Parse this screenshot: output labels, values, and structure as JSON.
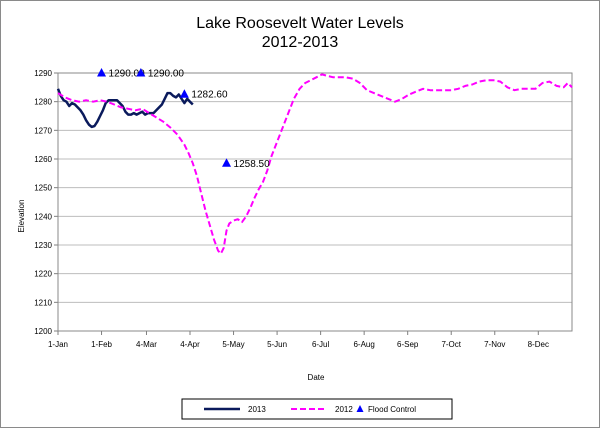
{
  "chart_data": {
    "type": "line",
    "title": "Lake Roosevelt Water Levels",
    "subtitle": "2012-2013",
    "xlabel": "Date",
    "ylabel": "Elevation",
    "ylim": [
      1200,
      1290
    ],
    "yticks": [
      1200,
      1210,
      1220,
      1230,
      1240,
      1250,
      1260,
      1270,
      1280,
      1290
    ],
    "xlim": [
      0,
      366
    ],
    "xtick_labels": [
      "1-Jan",
      "1-Feb",
      "4-Mar",
      "4-Apr",
      "5-May",
      "5-Jun",
      "6-Jul",
      "6-Aug",
      "6-Sep",
      "7-Oct",
      "7-Nov",
      "8-Dec"
    ],
    "xtick_days": [
      0,
      31,
      63,
      94,
      125,
      156,
      187,
      218,
      249,
      280,
      311,
      342
    ],
    "grid": "horizontal",
    "legend_position": "bottom",
    "series": [
      {
        "name": "2013",
        "color": "#0a1a5c",
        "style": "solid",
        "points": [
          [
            0,
            1284.5
          ],
          [
            2,
            1282
          ],
          [
            4,
            1280.5
          ],
          [
            6,
            1280
          ],
          [
            8,
            1278.5
          ],
          [
            10,
            1279.5
          ],
          [
            12,
            1279
          ],
          [
            14,
            1278
          ],
          [
            16,
            1277
          ],
          [
            18,
            1275.5
          ],
          [
            20,
            1273.5
          ],
          [
            22,
            1272
          ],
          [
            24,
            1271.2
          ],
          [
            26,
            1271.5
          ],
          [
            28,
            1273
          ],
          [
            30,
            1275
          ],
          [
            32,
            1277
          ],
          [
            34,
            1279.5
          ],
          [
            36,
            1280.5
          ],
          [
            38,
            1280.5
          ],
          [
            40,
            1280.5
          ],
          [
            42,
            1280.5
          ],
          [
            44,
            1279.5
          ],
          [
            46,
            1278.5
          ],
          [
            48,
            1276.5
          ],
          [
            50,
            1275.5
          ],
          [
            52,
            1275.5
          ],
          [
            54,
            1276
          ],
          [
            56,
            1275.5
          ],
          [
            58,
            1276
          ],
          [
            60,
            1276.5
          ],
          [
            62,
            1275.5
          ],
          [
            64,
            1276
          ],
          [
            66,
            1276
          ],
          [
            68,
            1276
          ],
          [
            70,
            1277
          ],
          [
            72,
            1278
          ],
          [
            74,
            1279
          ],
          [
            76,
            1281
          ],
          [
            78,
            1283
          ],
          [
            80,
            1283
          ],
          [
            82,
            1282
          ],
          [
            84,
            1281.5
          ],
          [
            86,
            1282.5
          ],
          [
            88,
            1281
          ],
          [
            90,
            1279.5
          ],
          [
            92,
            1281
          ],
          [
            94,
            1280
          ],
          [
            96,
            1279
          ]
        ]
      },
      {
        "name": "2012",
        "color": "#ff00ff",
        "style": "dashed",
        "points": [
          [
            0,
            1283
          ],
          [
            5,
            1281.5
          ],
          [
            10,
            1280.5
          ],
          [
            15,
            1280
          ],
          [
            20,
            1280.5
          ],
          [
            25,
            1280
          ],
          [
            30,
            1280.5
          ],
          [
            35,
            1280
          ],
          [
            40,
            1279
          ],
          [
            45,
            1278
          ],
          [
            50,
            1277.5
          ],
          [
            55,
            1277
          ],
          [
            60,
            1277.5
          ],
          [
            65,
            1276
          ],
          [
            70,
            1274.5
          ],
          [
            75,
            1273
          ],
          [
            80,
            1271
          ],
          [
            85,
            1268.5
          ],
          [
            90,
            1265
          ],
          [
            93,
            1262
          ],
          [
            96,
            1258.5
          ],
          [
            99,
            1254
          ],
          [
            102,
            1248
          ],
          [
            105,
            1242
          ],
          [
            108,
            1237
          ],
          [
            111,
            1232
          ],
          [
            114,
            1228
          ],
          [
            116,
            1227
          ],
          [
            118,
            1229
          ],
          [
            120,
            1235
          ],
          [
            122,
            1237.5
          ],
          [
            125,
            1238.5
          ],
          [
            128,
            1239
          ],
          [
            131,
            1238
          ],
          [
            134,
            1240
          ],
          [
            137,
            1243
          ],
          [
            140,
            1246.5
          ],
          [
            143,
            1249.5
          ],
          [
            146,
            1252
          ],
          [
            149,
            1256
          ],
          [
            152,
            1261
          ],
          [
            156,
            1266
          ],
          [
            160,
            1271
          ],
          [
            164,
            1276
          ],
          [
            168,
            1281
          ],
          [
            172,
            1284.5
          ],
          [
            176,
            1286.5
          ],
          [
            180,
            1287.5
          ],
          [
            184,
            1288.5
          ],
          [
            188,
            1289.5
          ],
          [
            192,
            1289
          ],
          [
            196,
            1288.5
          ],
          [
            200,
            1288.5
          ],
          [
            205,
            1288.5
          ],
          [
            210,
            1288
          ],
          [
            215,
            1286.5
          ],
          [
            220,
            1284
          ],
          [
            225,
            1283
          ],
          [
            230,
            1282
          ],
          [
            235,
            1281
          ],
          [
            240,
            1280
          ],
          [
            245,
            1281
          ],
          [
            250,
            1282.5
          ],
          [
            255,
            1283.5
          ],
          [
            260,
            1284.5
          ],
          [
            265,
            1284
          ],
          [
            270,
            1284
          ],
          [
            275,
            1284
          ],
          [
            280,
            1284
          ],
          [
            285,
            1284.5
          ],
          [
            290,
            1285.5
          ],
          [
            295,
            1286
          ],
          [
            300,
            1287
          ],
          [
            305,
            1287.5
          ],
          [
            310,
            1287.5
          ],
          [
            315,
            1287
          ],
          [
            320,
            1285
          ],
          [
            325,
            1284
          ],
          [
            330,
            1284.5
          ],
          [
            335,
            1284.5
          ],
          [
            340,
            1284.5
          ],
          [
            345,
            1286.5
          ],
          [
            350,
            1287
          ],
          [
            355,
            1285.5
          ],
          [
            360,
            1285
          ],
          [
            363,
            1286.5
          ],
          [
            366,
            1285
          ]
        ]
      },
      {
        "name": "Flood Control",
        "color": "#0000ff",
        "style": "marker",
        "points": [
          [
            31,
            1290,
            "1290.00"
          ],
          [
            59,
            1290,
            "1290.00"
          ],
          [
            90,
            1282.6,
            "1282.60"
          ],
          [
            120,
            1258.5,
            "1258.50"
          ]
        ]
      }
    ]
  }
}
